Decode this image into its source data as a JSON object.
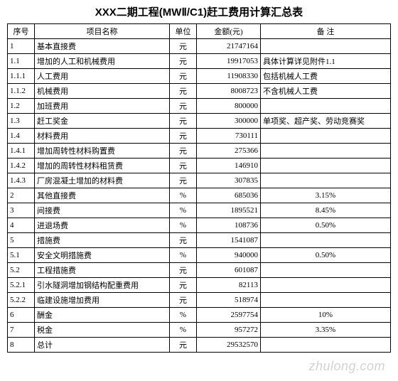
{
  "title": "XXX二期工程(MWⅡ/C1)赶工费用计算汇总表",
  "watermark": "zhulong.com",
  "headers": {
    "seq": "序号",
    "name": "项目名称",
    "unit": "单位",
    "amount": "金额(元)",
    "note": "备 注"
  },
  "rows": [
    {
      "seq": "1",
      "name": "基本直接费",
      "unit": "元",
      "amount": "21747164",
      "note": "",
      "noteAlign": "left"
    },
    {
      "seq": "1.1",
      "name": "增加的人工和机械费用",
      "unit": "元",
      "amount": "19917053",
      "note": "具体计算详见附件1.1",
      "noteAlign": "left"
    },
    {
      "seq": "1.1.1",
      "name": "人工费用",
      "unit": "元",
      "amount": "11908330",
      "note": "包括机械人工费",
      "noteAlign": "left"
    },
    {
      "seq": "1.1.2",
      "name": "机械费用",
      "unit": "元",
      "amount": "8008723",
      "note": "不含机械人工费",
      "noteAlign": "left"
    },
    {
      "seq": "1.2",
      "name": "加班费用",
      "unit": "元",
      "amount": "800000",
      "note": "",
      "noteAlign": "left"
    },
    {
      "seq": "1.3",
      "name": "赶工奖金",
      "unit": "元",
      "amount": "300000",
      "note": "单项奖、超产奖、劳动竞赛奖",
      "noteAlign": "left"
    },
    {
      "seq": "1.4",
      "name": "材料费用",
      "unit": "元",
      "amount": "730111",
      "note": "",
      "noteAlign": "left"
    },
    {
      "seq": "1.4.1",
      "name": "增加周转性材料购置费",
      "unit": "元",
      "amount": "275366",
      "note": "",
      "noteAlign": "left"
    },
    {
      "seq": "1.4.2",
      "name": "增加的周转性材料租赁费",
      "unit": "元",
      "amount": "146910",
      "note": "",
      "noteAlign": "left"
    },
    {
      "seq": "1.4.3",
      "name": "厂房混凝土增加的材料费",
      "unit": "元",
      "amount": "307835",
      "note": "",
      "noteAlign": "left"
    },
    {
      "seq": "2",
      "name": "其他直接费",
      "unit": "%",
      "amount": "685036",
      "note": "3.15%",
      "noteAlign": "center"
    },
    {
      "seq": "3",
      "name": "间接费",
      "unit": "%",
      "amount": "1895521",
      "note": "8.45%",
      "noteAlign": "center"
    },
    {
      "seq": "4",
      "name": "进退场费",
      "unit": "%",
      "amount": "108736",
      "note": "0.50%",
      "noteAlign": "center"
    },
    {
      "seq": "5",
      "name": "措施费",
      "unit": "元",
      "amount": "1541087",
      "note": "",
      "noteAlign": "left"
    },
    {
      "seq": "5.1",
      "name": "安全文明措施费",
      "unit": "%",
      "amount": "940000",
      "note": "0.50%",
      "noteAlign": "center"
    },
    {
      "seq": "5.2",
      "name": "工程措施费",
      "unit": "元",
      "amount": "601087",
      "note": "",
      "noteAlign": "left"
    },
    {
      "seq": "5.2.1",
      "name": "引水隧洞增加钢结构配重费用",
      "unit": "元",
      "amount": "82113",
      "note": "",
      "noteAlign": "left"
    },
    {
      "seq": "5.2.2",
      "name": "临建设施增加费用",
      "unit": "元",
      "amount": "518974",
      "note": "",
      "noteAlign": "left"
    },
    {
      "seq": "6",
      "name": "酬金",
      "unit": "%",
      "amount": "2597754",
      "note": "10%",
      "noteAlign": "center"
    },
    {
      "seq": "7",
      "name": "税金",
      "unit": "%",
      "amount": "957272",
      "note": "3.35%",
      "noteAlign": "center"
    },
    {
      "seq": "8",
      "name": "总计",
      "unit": "元",
      "amount": "29532570",
      "note": "",
      "noteAlign": "left"
    }
  ]
}
